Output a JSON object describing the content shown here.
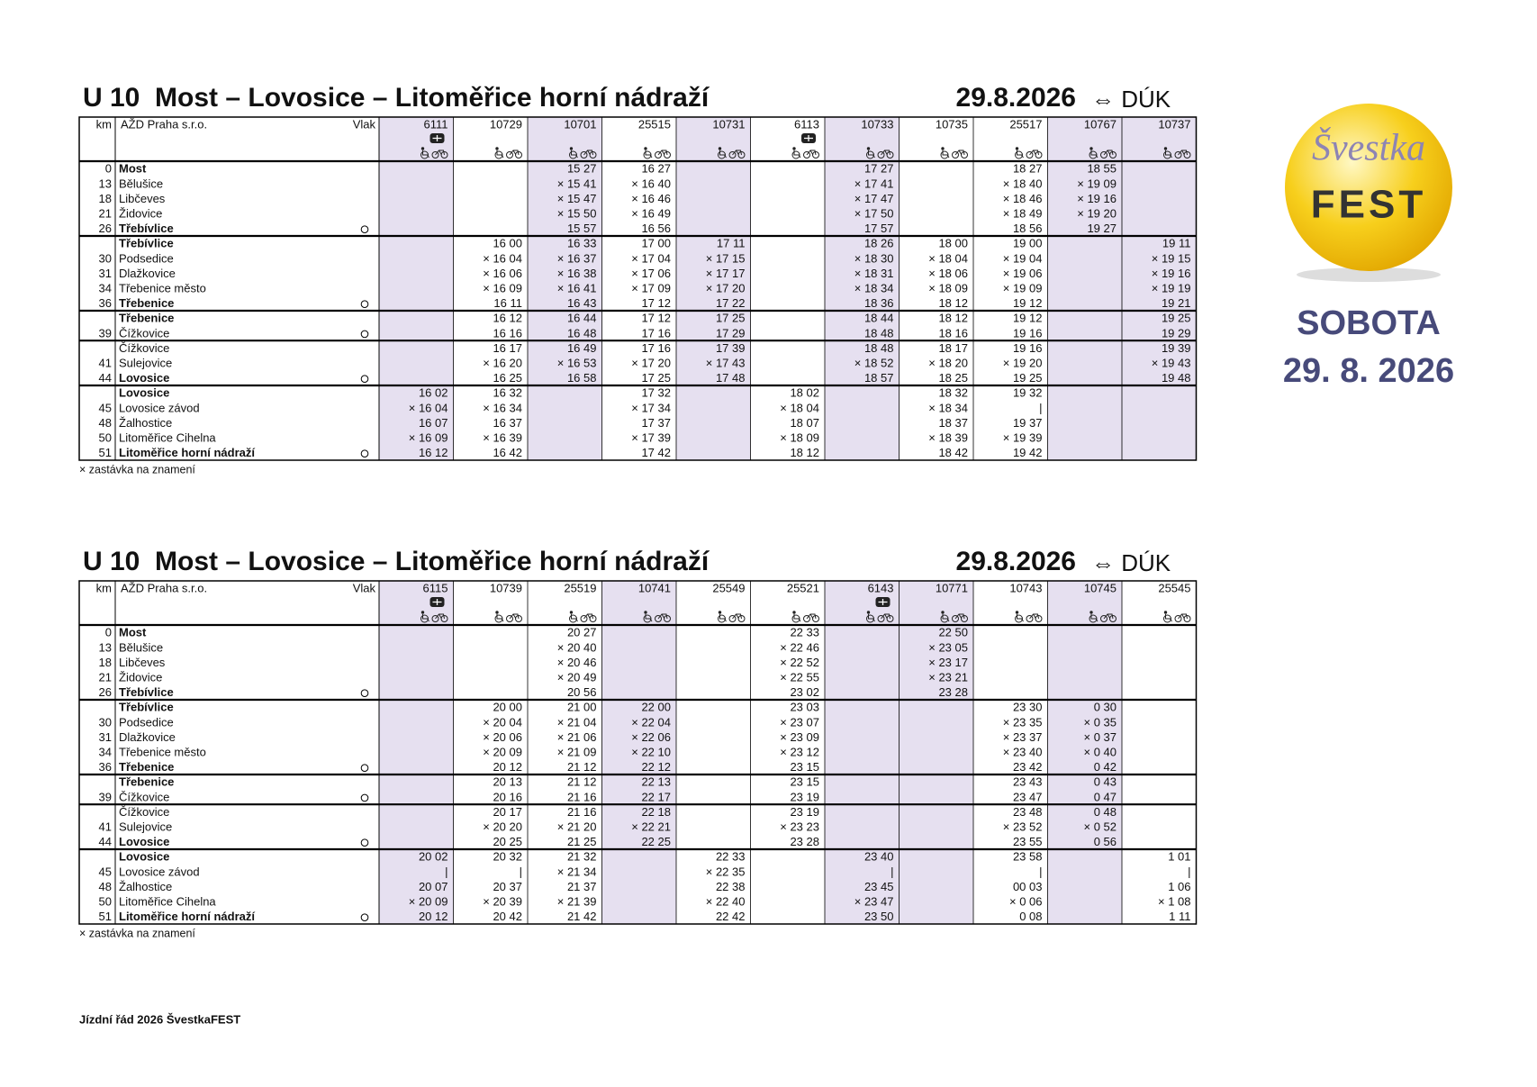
{
  "tables": [
    {
      "title": "U 10  Most – Lovosice – Litoměřice horní nádraží",
      "date": "29.8.2026",
      "direction": "⇔ DÚK",
      "header": {
        "km": "km",
        "operator": "AŽD Praha s.r.o.",
        "train": "Vlak"
      },
      "stations": [
        {
          "km": 0,
          "name": "Most",
          "bold": true
        },
        {
          "km": 13,
          "name": "Bělušice"
        },
        {
          "km": 18,
          "name": "Libčeves"
        },
        {
          "km": 21,
          "name": "Židovice"
        },
        {
          "km": 26,
          "name": "Třebívlice",
          "bold": true,
          "terminal": true
        },
        {
          "km": null,
          "name": "Třebívlice",
          "bold": true,
          "new_section": true
        },
        {
          "km": 30,
          "name": "Podsedice"
        },
        {
          "km": 31,
          "name": "Dlažkovice"
        },
        {
          "km": 34,
          "name": "Třebenice město"
        },
        {
          "km": 36,
          "name": "Třebenice",
          "bold": true,
          "terminal": true
        },
        {
          "km": null,
          "name": "Třebenice",
          "bold": true,
          "new_section": true
        },
        {
          "km": 39,
          "name": "Čížkovice",
          "terminal": true
        },
        {
          "km": null,
          "name": "Čížkovice",
          "new_section": true
        },
        {
          "km": 41,
          "name": "Sulejovice"
        },
        {
          "km": 44,
          "name": "Lovosice",
          "bold": true,
          "terminal": true
        },
        {
          "km": null,
          "name": "Lovosice",
          "bold": true,
          "new_section": true
        },
        {
          "km": 45,
          "name": "Lovosice závod"
        },
        {
          "km": 48,
          "name": "Žalhostice"
        },
        {
          "km": 50,
          "name": "Litoměřice Cihelna"
        },
        {
          "km": 51,
          "name": "Litoměřice horní nádraží",
          "bold": true,
          "terminal": true
        }
      ],
      "trains": [
        {
          "number": "6111",
          "cd": true,
          "shaded": true,
          "times": [
            null,
            null,
            null,
            null,
            null,
            null,
            null,
            null,
            null,
            null,
            null,
            null,
            null,
            null,
            null,
            "16 02",
            "× 16 04",
            "16 07",
            "× 16 09",
            "16 12"
          ]
        },
        {
          "number": "10729",
          "shaded": false,
          "times": [
            null,
            null,
            null,
            null,
            null,
            "16 00",
            "× 16 04",
            "× 16 06",
            "× 16 09",
            "16 11",
            "16 12",
            "16 16",
            "16 17",
            "× 16 20",
            "16 25",
            "16 32",
            "× 16 34",
            "16 37",
            "× 16 39",
            "16 42"
          ]
        },
        {
          "number": "10701",
          "shaded": true,
          "times": [
            "15 27",
            "× 15 41",
            "× 15 47",
            "× 15 50",
            "15 57",
            "16 33",
            "× 16 37",
            "× 16 38",
            "× 16 41",
            "16 43",
            "16 44",
            "16 48",
            "16 49",
            "× 16 53",
            "16 58",
            null,
            null,
            null,
            null,
            null
          ]
        },
        {
          "number": "25515",
          "shaded": false,
          "times": [
            "16 27",
            "× 16 40",
            "× 16 46",
            "× 16 49",
            "16 56",
            "17 00",
            "× 17 04",
            "× 17 06",
            "× 17 09",
            "17 12",
            "17 12",
            "17 16",
            "17 16",
            "× 17 20",
            "17 25",
            "17 32",
            "× 17 34",
            "17 37",
            "× 17 39",
            "17 42"
          ]
        },
        {
          "number": "10731",
          "shaded": true,
          "times": [
            null,
            null,
            null,
            null,
            null,
            "17 11",
            "× 17 15",
            "× 17 17",
            "× 17 20",
            "17 22",
            "17 25",
            "17 29",
            "17 39",
            "× 17 43",
            "17 48",
            null,
            null,
            null,
            null,
            null
          ]
        },
        {
          "number": "6113",
          "cd": true,
          "shaded": false,
          "times": [
            null,
            null,
            null,
            null,
            null,
            null,
            null,
            null,
            null,
            null,
            null,
            null,
            null,
            null,
            null,
            "18 02",
            "× 18 04",
            "18 07",
            "× 18 09",
            "18 12"
          ]
        },
        {
          "number": "10733",
          "shaded": true,
          "times": [
            "17 27",
            "× 17 41",
            "× 17 47",
            "× 17 50",
            "17 57",
            "18 26",
            "× 18 30",
            "× 18 31",
            "× 18 34",
            "18 36",
            "18 44",
            "18 48",
            "18 48",
            "× 18 52",
            "18 57",
            null,
            null,
            null,
            null,
            null
          ]
        },
        {
          "number": "10735",
          "shaded": false,
          "times": [
            null,
            null,
            null,
            null,
            null,
            "18 00",
            "× 18 04",
            "× 18 06",
            "× 18 09",
            "18 12",
            "18 12",
            "18 16",
            "18 17",
            "× 18 20",
            "18 25",
            "18 32",
            "× 18 34",
            "18 37",
            "× 18 39",
            "18 42"
          ]
        },
        {
          "number": "25517",
          "shaded": false,
          "times": [
            "18 27",
            "× 18 40",
            "× 18 46",
            "× 18 49",
            "18 56",
            "19 00",
            "× 19 04",
            "× 19 06",
            "× 19 09",
            "19 12",
            "19 12",
            "19 16",
            "19 16",
            "× 19 20",
            "19 25",
            "19 32",
            "|",
            "19 37",
            "× 19 39",
            "19 42"
          ]
        },
        {
          "number": "10767",
          "shaded": true,
          "times": [
            "18 55",
            "× 19 09",
            "× 19 16",
            "× 19 20",
            "19 27",
            null,
            null,
            null,
            null,
            null,
            null,
            null,
            null,
            null,
            null,
            null,
            null,
            null,
            null,
            null
          ]
        },
        {
          "number": "10737",
          "shaded": true,
          "times": [
            null,
            null,
            null,
            null,
            null,
            "19 11",
            "× 19 15",
            "× 19 16",
            "× 19 19",
            "19 21",
            "19 25",
            "19 29",
            "19 39",
            "× 19 43",
            "19 48",
            null,
            null,
            null,
            null,
            null
          ]
        }
      ],
      "footnote": "× zastávka na znamení"
    },
    {
      "title": "U 10  Most – Lovosice – Litoměřice horní nádraží",
      "date": "29.8.2026",
      "direction": "⇔ DÚK",
      "header": {
        "km": "km",
        "operator": "AŽD Praha s.r.o.",
        "train": "Vlak"
      },
      "stations": [
        {
          "km": 0,
          "name": "Most",
          "bold": true
        },
        {
          "km": 13,
          "name": "Bělušice"
        },
        {
          "km": 18,
          "name": "Libčeves"
        },
        {
          "km": 21,
          "name": "Židovice"
        },
        {
          "km": 26,
          "name": "Třebívlice",
          "bold": true,
          "terminal": true
        },
        {
          "km": null,
          "name": "Třebívlice",
          "bold": true,
          "new_section": true
        },
        {
          "km": 30,
          "name": "Podsedice"
        },
        {
          "km": 31,
          "name": "Dlažkovice"
        },
        {
          "km": 34,
          "name": "Třebenice město"
        },
        {
          "km": 36,
          "name": "Třebenice",
          "bold": true,
          "terminal": true
        },
        {
          "km": null,
          "name": "Třebenice",
          "bold": true,
          "new_section": true
        },
        {
          "km": 39,
          "name": "Čížkovice",
          "terminal": true
        },
        {
          "km": null,
          "name": "Čížkovice",
          "new_section": true
        },
        {
          "km": 41,
          "name": "Sulejovice"
        },
        {
          "km": 44,
          "name": "Lovosice",
          "bold": true,
          "terminal": true
        },
        {
          "km": null,
          "name": "Lovosice",
          "bold": true,
          "new_section": true
        },
        {
          "km": 45,
          "name": "Lovosice závod"
        },
        {
          "km": 48,
          "name": "Žalhostice"
        },
        {
          "km": 50,
          "name": "Litoměřice Cihelna"
        },
        {
          "km": 51,
          "name": "Litoměřice horní nádraží",
          "bold": true,
          "terminal": true
        }
      ],
      "trains": [
        {
          "number": "6115",
          "cd": true,
          "shaded": true,
          "times": [
            null,
            null,
            null,
            null,
            null,
            null,
            null,
            null,
            null,
            null,
            null,
            null,
            null,
            null,
            null,
            "20 02",
            "|",
            "20 07",
            "× 20 09",
            "20 12"
          ]
        },
        {
          "number": "10739",
          "shaded": false,
          "times": [
            null,
            null,
            null,
            null,
            null,
            "20 00",
            "× 20 04",
            "× 20 06",
            "× 20 09",
            "20 12",
            "20 13",
            "20 16",
            "20 17",
            "× 20 20",
            "20 25",
            "20 32",
            "|",
            "20 37",
            "× 20 39",
            "20 42"
          ]
        },
        {
          "number": "25519",
          "shaded": false,
          "times": [
            "20 27",
            "× 20 40",
            "× 20 46",
            "× 20 49",
            "20 56",
            "21 00",
            "× 21 04",
            "× 21 06",
            "× 21 09",
            "21 12",
            "21 12",
            "21 16",
            "21 16",
            "× 21 20",
            "21 25",
            "21 32",
            "× 21 34",
            "21 37",
            "× 21 39",
            "21 42"
          ]
        },
        {
          "number": "10741",
          "shaded": true,
          "times": [
            null,
            null,
            null,
            null,
            null,
            "22 00",
            "× 22 04",
            "× 22 06",
            "× 22 10",
            "22 12",
            "22 13",
            "22 17",
            "22 18",
            "× 22 21",
            "22 25",
            null,
            null,
            null,
            null,
            null
          ]
        },
        {
          "number": "25549",
          "shaded": false,
          "times": [
            null,
            null,
            null,
            null,
            null,
            null,
            null,
            null,
            null,
            null,
            null,
            null,
            null,
            null,
            null,
            "22 33",
            "× 22 35",
            "22 38",
            "× 22 40",
            "22 42"
          ]
        },
        {
          "number": "25521",
          "shaded": false,
          "times": [
            "22 33",
            "× 22 46",
            "× 22 52",
            "× 22 55",
            "23 02",
            "23 03",
            "× 23 07",
            "× 23 09",
            "× 23 12",
            "23 15",
            "23 15",
            "23 19",
            "23 19",
            "× 23 23",
            "23 28",
            null,
            null,
            null,
            null,
            null
          ]
        },
        {
          "number": "6143",
          "cd": true,
          "shaded": true,
          "times": [
            null,
            null,
            null,
            null,
            null,
            null,
            null,
            null,
            null,
            null,
            null,
            null,
            null,
            null,
            null,
            "23 40",
            "|",
            "23 45",
            "× 23 47",
            "23 50"
          ]
        },
        {
          "number": "10771",
          "shaded": true,
          "times": [
            "22 50",
            "× 23 05",
            "× 23 17",
            "× 23 21",
            "23 28",
            null,
            null,
            null,
            null,
            null,
            null,
            null,
            null,
            null,
            null,
            null,
            null,
            null,
            null,
            null
          ]
        },
        {
          "number": "10743",
          "shaded": false,
          "times": [
            null,
            null,
            null,
            null,
            null,
            "23 30",
            "× 23 35",
            "× 23 37",
            "× 23 40",
            "23 42",
            "23 43",
            "23 47",
            "23 48",
            "× 23 52",
            "23 55",
            "23 58",
            "|",
            "00 03",
            "× 0 06",
            "0 08"
          ]
        },
        {
          "number": "10745",
          "shaded": true,
          "times": [
            null,
            null,
            null,
            null,
            null,
            "0 30",
            "× 0 35",
            "× 0 37",
            "× 0 40",
            "0 42",
            "0 43",
            "0 47",
            "0 48",
            "× 0 52",
            "0 56",
            null,
            null,
            null,
            null,
            null
          ]
        },
        {
          "number": "25545",
          "shaded": false,
          "times": [
            null,
            null,
            null,
            null,
            null,
            null,
            null,
            null,
            null,
            null,
            null,
            null,
            null,
            null,
            null,
            "1 01",
            "|",
            "1 06",
            "× 1 08",
            "1 11"
          ]
        }
      ],
      "footnote": "× zastávka na znamení"
    }
  ],
  "logo": {
    "top": "Švestka",
    "bottom": "FEST"
  },
  "day": "SOBOTA",
  "day_date": "29. 8. 2026",
  "footer": "Jízdní řád 2026 ŠvestkaFEST"
}
